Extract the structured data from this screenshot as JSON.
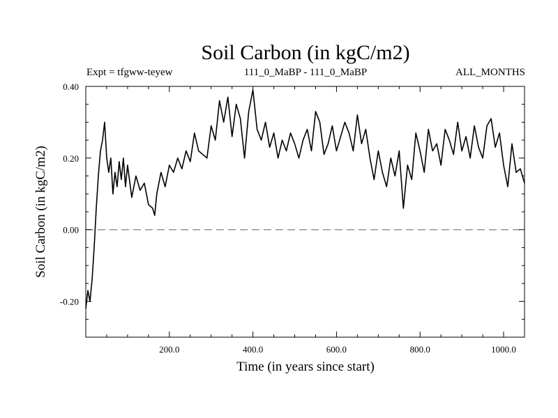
{
  "chart_data": {
    "type": "line",
    "title": "Soil Carbon (in kgC/m2)",
    "subtitle_left": "Expt = tfgww-teyew",
    "subtitle_center": "111_0_MaBP - 111_0_MaBP",
    "subtitle_right": "ALL_MONTHS",
    "xlabel": "Time (in years since start)",
    "ylabel": "Soil Carbon (in kgC/m2)",
    "xlim": [
      0,
      1050
    ],
    "ylim": [
      -0.3,
      0.4
    ],
    "xticks": [
      200,
      400,
      600,
      800,
      1000
    ],
    "xtick_labels": [
      "200.0",
      "400.0",
      "600.0",
      "800.0",
      "1000.0"
    ],
    "yticks": [
      -0.2,
      0.0,
      0.2,
      0.4
    ],
    "ytick_labels": [
      "-0.20",
      "0.00",
      "0.20",
      "0.40"
    ],
    "reference_line": {
      "y": 0.0,
      "style": "dashed",
      "color": "#808080"
    },
    "line_color": "#000000",
    "series": [
      {
        "name": "Soil Carbon",
        "x": [
          0,
          5,
          10,
          15,
          20,
          25,
          30,
          35,
          40,
          45,
          50,
          55,
          60,
          65,
          70,
          75,
          80,
          85,
          90,
          95,
          100,
          110,
          120,
          130,
          140,
          150,
          160,
          165,
          170,
          180,
          190,
          200,
          210,
          220,
          230,
          240,
          250,
          260,
          270,
          280,
          290,
          300,
          310,
          320,
          330,
          340,
          350,
          360,
          370,
          380,
          390,
          400,
          410,
          420,
          430,
          440,
          450,
          460,
          470,
          480,
          490,
          500,
          510,
          520,
          530,
          540,
          550,
          560,
          570,
          580,
          590,
          600,
          610,
          620,
          630,
          640,
          650,
          660,
          670,
          680,
          690,
          700,
          710,
          720,
          730,
          740,
          750,
          760,
          770,
          780,
          790,
          800,
          810,
          820,
          830,
          840,
          850,
          860,
          870,
          880,
          890,
          900,
          910,
          920,
          930,
          940,
          950,
          960,
          970,
          980,
          990,
          1000,
          1010,
          1020,
          1030,
          1040,
          1050
        ],
        "y": [
          -0.22,
          -0.17,
          -0.2,
          -0.14,
          -0.05,
          0.06,
          0.15,
          0.22,
          0.25,
          0.3,
          0.2,
          0.16,
          0.2,
          0.1,
          0.16,
          0.12,
          0.19,
          0.14,
          0.2,
          0.12,
          0.18,
          0.09,
          0.15,
          0.11,
          0.13,
          0.07,
          0.06,
          0.04,
          0.1,
          0.16,
          0.12,
          0.18,
          0.16,
          0.2,
          0.17,
          0.22,
          0.19,
          0.27,
          0.22,
          0.21,
          0.2,
          0.29,
          0.25,
          0.36,
          0.3,
          0.37,
          0.26,
          0.35,
          0.31,
          0.2,
          0.33,
          0.39,
          0.28,
          0.25,
          0.3,
          0.23,
          0.27,
          0.2,
          0.25,
          0.22,
          0.27,
          0.24,
          0.2,
          0.25,
          0.28,
          0.22,
          0.33,
          0.3,
          0.21,
          0.24,
          0.29,
          0.22,
          0.26,
          0.3,
          0.27,
          0.22,
          0.32,
          0.24,
          0.28,
          0.2,
          0.14,
          0.22,
          0.16,
          0.12,
          0.2,
          0.15,
          0.22,
          0.06,
          0.18,
          0.14,
          0.27,
          0.22,
          0.16,
          0.28,
          0.22,
          0.24,
          0.18,
          0.28,
          0.25,
          0.21,
          0.3,
          0.22,
          0.26,
          0.2,
          0.29,
          0.23,
          0.2,
          0.29,
          0.31,
          0.23,
          0.27,
          0.18,
          0.12,
          0.24,
          0.16,
          0.17,
          0.13
        ]
      }
    ]
  }
}
